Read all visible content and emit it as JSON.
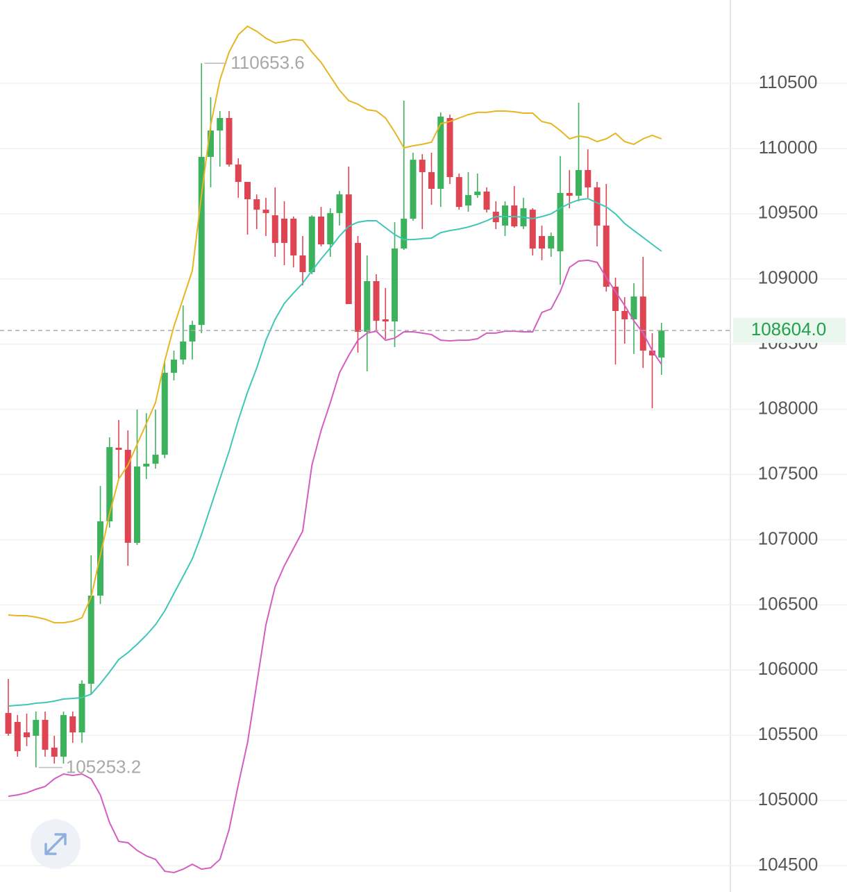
{
  "chart_data": {
    "type": "candlestick",
    "ylim": [
      104298,
      111139
    ],
    "yticks": [
      104500,
      105000,
      105500,
      106000,
      106500,
      107000,
      107500,
      108000,
      108500,
      109000,
      109500,
      110000,
      110500
    ],
    "grid": true,
    "up_color": "#3cb25c",
    "down_color": "#df4452",
    "open": [
      105671,
      105602,
      105522,
      105496,
      105618,
      105405,
      105336,
      105645,
      105522,
      105895,
      106571,
      107141,
      107705,
      107689,
      106976,
      107561,
      107583,
      107652,
      108280,
      108381,
      108520,
      108647,
      109936,
      110138,
      110234,
      109877,
      109744,
      109611,
      109531,
      109488,
      109462,
      109462,
      109180,
      109052,
      109478,
      109265,
      109505,
      109648,
      109276,
      108594,
      108983,
      108690,
      108674,
      109233,
      109462,
      109914,
      109819,
      109691,
      110234,
      109781,
      109563,
      109643,
      109670,
      109515,
      109409,
      109563,
      109403,
      109531,
      109329,
      109233,
      109212,
      109659,
      109638,
      109835,
      109702,
      109409,
      108940,
      108754,
      108690,
      108865,
      108450,
      108397
    ],
    "high": [
      105932,
      105655,
      105666,
      105682,
      105682,
      105496,
      105682,
      105682,
      105922,
      106880,
      107412,
      107785,
      107918,
      107838,
      107998,
      107971,
      107998,
      108371,
      108450,
      108796,
      108679,
      110653.6,
      110394,
      110287,
      110287,
      109925,
      109744,
      109648,
      109622,
      109702,
      109595,
      109478,
      109329,
      109488,
      109552,
      109542,
      109675,
      109861,
      109329,
      109180,
      109036,
      108930,
      109435,
      110367,
      109968,
      109957,
      109968,
      110277,
      110260,
      109808,
      109819,
      109808,
      109702,
      109595,
      109595,
      109712,
      109622,
      109542,
      109409,
      109355,
      109941,
      109835,
      110351,
      109994,
      109744,
      109728,
      109010,
      108860,
      108967,
      109169,
      108584,
      108663
    ],
    "low": [
      105496,
      105336,
      105416,
      105253.2,
      105336,
      105283,
      105283,
      105442,
      105442,
      105815,
      106507,
      107093,
      107465,
      106800,
      106960,
      107465,
      107545,
      107625,
      108221,
      108344,
      108381,
      108584,
      109702,
      109861,
      109861,
      109622,
      109340,
      109382,
      109329,
      109169,
      109105,
      109089,
      108950,
      109036,
      109249,
      109169,
      109409,
      108807,
      108434,
      108291,
      108594,
      108541,
      108477,
      109222,
      109446,
      109382,
      109568,
      109552,
      109728,
      109531,
      109515,
      109622,
      109510,
      109382,
      109329,
      109393,
      109382,
      109180,
      109143,
      109169,
      108956,
      109542,
      109595,
      109622,
      109249,
      108903,
      108344,
      108504,
      108424,
      108317,
      108008,
      108264
    ],
    "close": [
      105512,
      105378,
      105485,
      105618,
      105389,
      105336,
      105655,
      105522,
      105895,
      106571,
      107141,
      107710,
      107689,
      106976,
      107561,
      107583,
      107652,
      108280,
      108381,
      108520,
      108647,
      109936,
      110138,
      110234,
      109877,
      109744,
      109611,
      109531,
      109505,
      109276,
      109276,
      109180,
      109052,
      109478,
      109265,
      109505,
      109648,
      108807,
      108594,
      108983,
      108679,
      108674,
      109233,
      109462,
      109914,
      109819,
      109691,
      110245,
      109781,
      109552,
      109643,
      109670,
      109531,
      109435,
      109563,
      109403,
      109542,
      109233,
      109233,
      109329,
      109659,
      109638,
      109835,
      109702,
      109409,
      108940,
      108754,
      108690,
      108865,
      108450,
      108413,
      108604
    ],
    "lines": [
      {
        "color": "#e7b521",
        "values": [
          106422,
          106417,
          106417,
          106406,
          106390,
          106363,
          106363,
          106374,
          106401,
          106560,
          106880,
          107199,
          107465,
          107572,
          107732,
          107891,
          108051,
          108371,
          108637,
          108850,
          109063,
          109648,
          110181,
          110527,
          110740,
          110873,
          110937,
          110899,
          110846,
          110809,
          110820,
          110836,
          110830,
          110740,
          110660,
          110553,
          110447,
          110367,
          110340,
          110298,
          110287,
          110234,
          110127,
          110005,
          110021,
          110032,
          110048,
          110191,
          110207,
          110234,
          110260,
          110277,
          110277,
          110287,
          110287,
          110282,
          110271,
          110271,
          110207,
          110191,
          110138,
          110074,
          110096,
          110085,
          110053,
          110074,
          110117,
          110053,
          110032,
          110074,
          110101,
          110074
        ]
      },
      {
        "color": "#3ec7b6",
        "values": [
          105724,
          105730,
          105735,
          105746,
          105751,
          105762,
          105778,
          105783,
          105789,
          105815,
          105895,
          105985,
          106081,
          106134,
          106198,
          106268,
          106348,
          106454,
          106587,
          106720,
          106853,
          107040,
          107252,
          107466,
          107678,
          107918,
          108131,
          108317,
          108530,
          108690,
          108812,
          108892,
          108967,
          109063,
          109153,
          109238,
          109329,
          109403,
          109435,
          109446,
          109446,
          109393,
          109340,
          109302,
          109302,
          109308,
          109313,
          109355,
          109371,
          109382,
          109398,
          109419,
          109446,
          109478,
          109478,
          109478,
          109473,
          109462,
          109478,
          109499,
          109542,
          109579,
          109606,
          109616,
          109584,
          109552,
          109499,
          109425,
          109371,
          109318,
          109265,
          109212
        ]
      },
      {
        "color": "#d45cc2",
        "values": [
          105032,
          105043,
          105059,
          105086,
          105107,
          105166,
          105203,
          105192,
          105203,
          105166,
          105043,
          104830,
          104686,
          104676,
          104617,
          104575,
          104548,
          104457,
          104447,
          104473,
          104511,
          104473,
          104484,
          104548,
          104777,
          105123,
          105442,
          105895,
          106347,
          106640,
          106800,
          106933,
          107066,
          107572,
          107838,
          108051,
          108280,
          108413,
          108530,
          108584,
          108599,
          108530,
          108546,
          108594,
          108594,
          108584,
          108573,
          108530,
          108525,
          108530,
          108530,
          108541,
          108584,
          108584,
          108599,
          108599,
          108594,
          108594,
          108743,
          108770,
          108903,
          109089,
          109137,
          109143,
          109127,
          109010,
          108903,
          108796,
          108679,
          108584,
          108450,
          108344
        ]
      }
    ],
    "last_price": {
      "value": 108604.0,
      "label": "108604.0"
    },
    "last_price_color": "#22a04c"
  }
}
